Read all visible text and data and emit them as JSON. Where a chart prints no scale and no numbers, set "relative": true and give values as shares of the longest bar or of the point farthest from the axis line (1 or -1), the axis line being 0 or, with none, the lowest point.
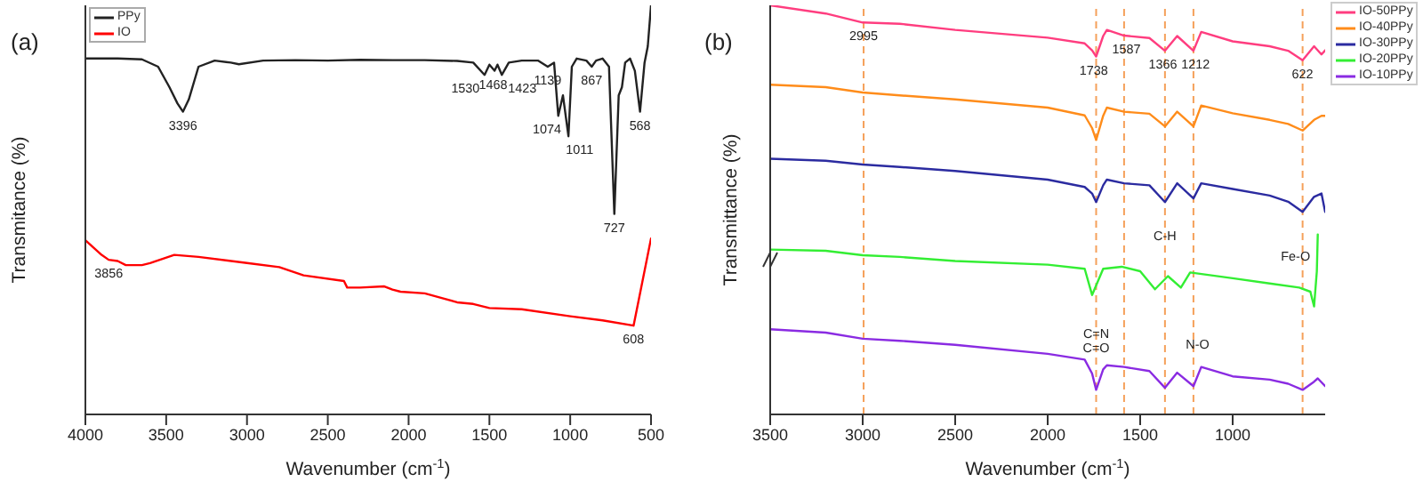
{
  "chart_data": [
    {
      "type": "line",
      "title": "(a)",
      "xlabel": "Wavenumber (cm$^{-1}$)",
      "ylabel": "Transmitance (%)",
      "relative": true,
      "xlim": [
        4000,
        500
      ],
      "xticks": [
        4000,
        3500,
        3000,
        2500,
        2000,
        1500,
        1000,
        500
      ],
      "legend": "top left",
      "marker": "none",
      "line_style": "solid",
      "series": [
        {
          "name": "PPy",
          "color": "#222222",
          "x": [
            4000,
            3800,
            3650,
            3550,
            3480,
            3430,
            3396,
            3360,
            3300,
            3200,
            3100,
            3050,
            2900,
            2700,
            2500,
            2300,
            2100,
            1900,
            1700,
            1600,
            1530,
            1500,
            1468,
            1450,
            1423,
            1380,
            1300,
            1200,
            1139,
            1100,
            1074,
            1045,
            1011,
            990,
            960,
            900,
            867,
            840,
            800,
            760,
            727,
            700,
            680,
            660,
            630,
            600,
            568,
            540,
            520,
            500
          ],
          "values": [
            0.87,
            0.87,
            0.868,
            0.85,
            0.8,
            0.76,
            0.74,
            0.77,
            0.85,
            0.865,
            0.86,
            0.856,
            0.865,
            0.866,
            0.865,
            0.867,
            0.866,
            0.866,
            0.864,
            0.86,
            0.83,
            0.855,
            0.84,
            0.855,
            0.83,
            0.86,
            0.865,
            0.865,
            0.85,
            0.86,
            0.73,
            0.78,
            0.68,
            0.85,
            0.87,
            0.865,
            0.85,
            0.865,
            0.87,
            0.85,
            0.49,
            0.78,
            0.8,
            0.86,
            0.87,
            0.84,
            0.74,
            0.86,
            0.9,
            1.0
          ]
        },
        {
          "name": "IO",
          "color": "#ff0000",
          "x": [
            4000,
            3900,
            3856,
            3800,
            3750,
            3650,
            3600,
            3450,
            3300,
            3000,
            2800,
            2650,
            2400,
            2380,
            2300,
            2150,
            2100,
            2050,
            1900,
            1800,
            1700,
            1600,
            1500,
            1300,
            1000,
            800,
            608,
            500
          ],
          "values": [
            0.426,
            0.39,
            0.378,
            0.375,
            0.365,
            0.365,
            0.37,
            0.39,
            0.385,
            0.37,
            0.36,
            0.34,
            0.326,
            0.31,
            0.31,
            0.313,
            0.305,
            0.3,
            0.296,
            0.285,
            0.274,
            0.27,
            0.26,
            0.257,
            0.24,
            0.23,
            0.217,
            0.43
          ]
        }
      ],
      "annotations": [
        {
          "text": "3396",
          "x": 3396,
          "y": 0.74
        },
        {
          "text": "1530",
          "x": 1530,
          "y": 0.83
        },
        {
          "text": "1468",
          "x": 1468,
          "y": 0.84
        },
        {
          "text": "1423",
          "x": 1423,
          "y": 0.83
        },
        {
          "text": "1139",
          "x": 1139,
          "y": 0.85
        },
        {
          "text": "1074",
          "x": 1074,
          "y": 0.73
        },
        {
          "text": "1011",
          "x": 1011,
          "y": 0.68
        },
        {
          "text": "867",
          "x": 867,
          "y": 0.85
        },
        {
          "text": "727",
          "x": 727,
          "y": 0.49
        },
        {
          "text": "568",
          "x": 568,
          "y": 0.74
        },
        {
          "text": "3856",
          "x": 3856,
          "y": 0.378
        },
        {
          "text": "608",
          "x": 608,
          "y": 0.217
        }
      ]
    },
    {
      "type": "line",
      "title": "(b)",
      "xlabel": "Wavenumber (cm$^{-1}$)",
      "ylabel": "Transmittance (%)",
      "relative": true,
      "xlim": [
        3500,
        500
      ],
      "xticks": [
        3500,
        3000,
        2500,
        2000,
        1500,
        1000
      ],
      "legend": "right",
      "marker": "none",
      "line_style": "solid",
      "series": [
        {
          "name": "IO-50PPy",
          "color": "#ff3d7f",
          "x": [
            3500,
            3200,
            3000,
            2800,
            2500,
            2000,
            1800,
            1760,
            1738,
            1700,
            1680,
            1587,
            1450,
            1366,
            1300,
            1212,
            1170,
            1000,
            800,
            700,
            622,
            560,
            520,
            500
          ],
          "values": [
            1.0,
            0.98,
            0.958,
            0.955,
            0.94,
            0.921,
            0.907,
            0.89,
            0.875,
            0.925,
            0.94,
            0.926,
            0.92,
            0.889,
            0.925,
            0.889,
            0.935,
            0.912,
            0.9,
            0.889,
            0.866,
            0.9,
            0.88,
            0.89
          ]
        },
        {
          "name": "IO-40PPy",
          "color": "#ff8c1a",
          "x": [
            3500,
            3200,
            3000,
            2800,
            2500,
            2000,
            1800,
            1760,
            1738,
            1700,
            1680,
            1587,
            1450,
            1366,
            1300,
            1212,
            1170,
            1000,
            800,
            700,
            622,
            560,
            520,
            500
          ],
          "values": [
            0.806,
            0.8,
            0.787,
            0.78,
            0.77,
            0.75,
            0.731,
            0.7,
            0.671,
            0.73,
            0.75,
            0.74,
            0.735,
            0.704,
            0.74,
            0.704,
            0.755,
            0.736,
            0.72,
            0.71,
            0.694,
            0.72,
            0.73,
            0.73
          ]
        },
        {
          "name": "IO-30PPy",
          "color": "#2b2ba0",
          "x": [
            3500,
            3200,
            3000,
            2800,
            2500,
            2000,
            1800,
            1760,
            1738,
            1700,
            1680,
            1587,
            1450,
            1366,
            1300,
            1212,
            1170,
            1000,
            800,
            700,
            622,
            560,
            520,
            500
          ],
          "values": [
            0.625,
            0.62,
            0.611,
            0.605,
            0.595,
            0.574,
            0.556,
            0.54,
            0.519,
            0.56,
            0.574,
            0.565,
            0.56,
            0.519,
            0.565,
            0.528,
            0.565,
            0.551,
            0.535,
            0.52,
            0.495,
            0.532,
            0.54,
            0.495
          ]
        },
        {
          "name": "IO-20PPy",
          "color": "#33ee33",
          "x": [
            3500,
            3200,
            3000,
            2800,
            2500,
            2000,
            1800,
            1760,
            1700,
            1600,
            1500,
            1420,
            1350,
            1280,
            1230,
            1000,
            800,
            640,
            580,
            560,
            545,
            540
          ],
          "values": [
            0.403,
            0.4,
            0.389,
            0.385,
            0.375,
            0.366,
            0.356,
            0.292,
            0.356,
            0.361,
            0.35,
            0.306,
            0.338,
            0.31,
            0.347,
            0.333,
            0.32,
            0.31,
            0.3,
            0.264,
            0.35,
            0.44
          ]
        },
        {
          "name": "IO-10PPy",
          "color": "#8a2be2",
          "x": [
            3500,
            3200,
            3000,
            2800,
            2500,
            2000,
            1800,
            1760,
            1738,
            1700,
            1680,
            1587,
            1450,
            1366,
            1300,
            1212,
            1170,
            1000,
            800,
            700,
            622,
            560,
            540,
            500
          ],
          "values": [
            0.208,
            0.2,
            0.185,
            0.18,
            0.17,
            0.148,
            0.134,
            0.1,
            0.06,
            0.11,
            0.12,
            0.116,
            0.106,
            0.065,
            0.102,
            0.069,
            0.116,
            0.093,
            0.085,
            0.075,
            0.06,
            0.08,
            0.088,
            0.069
          ]
        }
      ],
      "ref_lines": [
        {
          "axis": "x",
          "value": 2995,
          "color": "#f5a05a",
          "line_style": "dashed"
        },
        {
          "axis": "x",
          "value": 1738,
          "color": "#f5a05a",
          "line_style": "dashed"
        },
        {
          "axis": "x",
          "value": 1587,
          "color": "#f5a05a",
          "line_style": "dashed"
        },
        {
          "axis": "x",
          "value": 1366,
          "color": "#f5a05a",
          "line_style": "dashed"
        },
        {
          "axis": "x",
          "value": 1212,
          "color": "#f5a05a",
          "line_style": "dashed"
        },
        {
          "axis": "x",
          "value": 622,
          "color": "#f5a05a",
          "line_style": "dashed"
        }
      ],
      "annotations": [
        {
          "text": "2995",
          "x": 2995,
          "y": 0.958
        },
        {
          "text": "1738",
          "x": 1738,
          "y": 0.875
        },
        {
          "text": "1587",
          "x": 1587,
          "y": 0.926
        },
        {
          "text": "1366",
          "x": 1366,
          "y": 0.889
        },
        {
          "text": "1212",
          "x": 1212,
          "y": 0.889
        },
        {
          "text": "622",
          "x": 622,
          "y": 0.866
        },
        {
          "text": "C-H",
          "x": 1366,
          "y": 0.47
        },
        {
          "text": "Fe-O",
          "x": 660,
          "y": 0.42
        },
        {
          "text": "C=N\nC=O",
          "x": 1738,
          "y": 0.23
        },
        {
          "text": "N-O",
          "x": 1190,
          "y": 0.205
        }
      ]
    }
  ]
}
